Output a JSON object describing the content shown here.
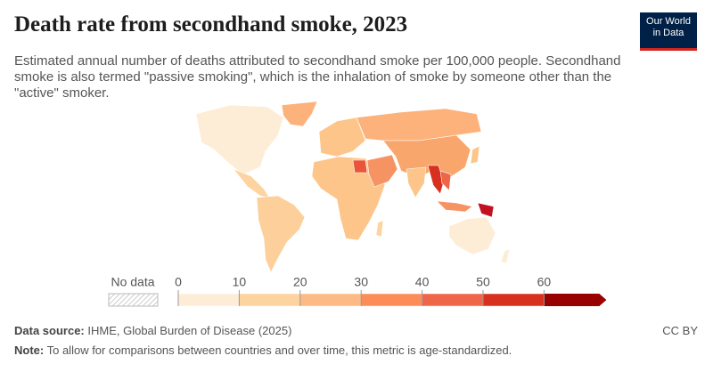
{
  "header": {
    "title": "Death rate from secondhand smoke, 2023",
    "subtitle": "Estimated annual number of deaths attributed to secondhand smoke per 100,000 people. Secondhand smoke is also termed \"passive smoking\", which is the inhalation of smoke by someone other than the \"active\" smoker.",
    "logo": [
      "Our World",
      "in Data"
    ]
  },
  "legend": {
    "no_data": "No data",
    "ticks": [
      0,
      10,
      20,
      30,
      40,
      50,
      60
    ],
    "colors": [
      "#feedd6",
      "#fdd3a0",
      "#fcbb84",
      "#fc8d59",
      "#ef6548",
      "#d7301f",
      "#990000"
    ]
  },
  "footer": {
    "source_label": "Data source:",
    "source": "IHME, Global Burden of Disease (2025)",
    "license": "CC BY",
    "note_label": "Note:",
    "note": "To allow for comparisons between countries and over time, this metric is age-standardized."
  }
}
